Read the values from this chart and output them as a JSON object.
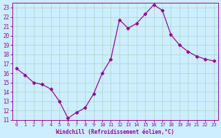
{
  "x": [
    0,
    1,
    2,
    3,
    4,
    5,
    6,
    7,
    8,
    9,
    10,
    11,
    12,
    13,
    14,
    15,
    16,
    17,
    18,
    19,
    20,
    21,
    22,
    23
  ],
  "y": [
    16.5,
    15.8,
    15.0,
    14.8,
    14.3,
    13.0,
    11.2,
    11.8,
    12.3,
    13.8,
    16.0,
    17.5,
    21.7,
    20.8,
    21.3,
    22.3,
    23.3,
    22.7,
    20.1,
    19.0,
    18.3,
    17.8,
    17.5,
    17.3
  ],
  "line_color": "#990099",
  "marker": "D",
  "marker_size": 2.5,
  "bg_color": "#cceeff",
  "grid_color": "#b0d8cc",
  "tick_color": "#990099",
  "xlabel": "Windchill (Refroidissement éolien,°C)",
  "xlabel_color": "#990099",
  "ylim": [
    11,
    23.5
  ],
  "xlim": [
    -0.5,
    23.5
  ],
  "yticks": [
    11,
    12,
    13,
    14,
    15,
    16,
    17,
    18,
    19,
    20,
    21,
    22,
    23
  ],
  "xticks": [
    0,
    1,
    2,
    3,
    4,
    5,
    6,
    7,
    8,
    9,
    10,
    11,
    12,
    13,
    14,
    15,
    16,
    17,
    18,
    19,
    20,
    21,
    22,
    23
  ]
}
